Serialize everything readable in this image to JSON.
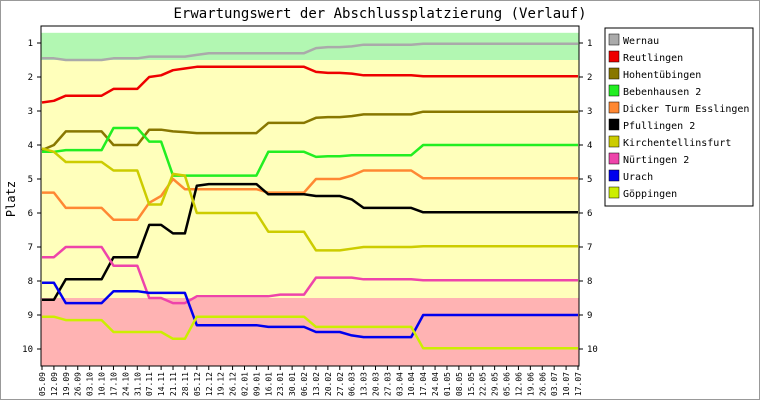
{
  "chart_data": {
    "type": "line",
    "title": "Erwartungswert der Abschlussplatzierung (Verlauf)",
    "ylabel": "Platz",
    "xlabel": "",
    "ylim": [
      1,
      10
    ],
    "y_inverted": true,
    "y_ticks": [
      1,
      2,
      3,
      4,
      5,
      6,
      7,
      8,
      9,
      10
    ],
    "grid": false,
    "legend_position": "right",
    "background_zones": [
      {
        "from": 0.7,
        "to": 1.5,
        "color": "#b2f7b2"
      },
      {
        "from": 1.5,
        "to": 8.5,
        "color": "#ffffbb"
      },
      {
        "from": 8.5,
        "to": 10.8,
        "color": "#ffb3b3"
      }
    ],
    "x": [
      "05.09",
      "12.09",
      "19.09",
      "26.09",
      "03.10",
      "10.10",
      "17.10",
      "24.10",
      "31.10",
      "07.11",
      "14.11",
      "21.11",
      "28.11",
      "05.12",
      "12.12",
      "19.12",
      "26.12",
      "02.01",
      "09.01",
      "16.01",
      "23.01",
      "30.01",
      "06.02",
      "13.02",
      "20.02",
      "27.02",
      "06.03",
      "13.03",
      "20.03",
      "27.03",
      "03.04",
      "10.04",
      "17.04",
      "24.04",
      "01.05",
      "08.05",
      "15.05",
      "22.05",
      "29.05",
      "05.06",
      "12.06",
      "19.06",
      "26.06",
      "03.07",
      "10.07",
      "17.07"
    ],
    "series": [
      {
        "name": "Wernau",
        "color": "#aaaaaa",
        "values": [
          1.45,
          1.45,
          1.5,
          1.5,
          1.5,
          1.5,
          1.45,
          1.45,
          1.45,
          1.4,
          1.4,
          1.4,
          1.4,
          1.35,
          1.3,
          1.3,
          1.3,
          1.3,
          1.3,
          1.3,
          1.3,
          1.3,
          1.3,
          1.15,
          1.12,
          1.12,
          1.1,
          1.05,
          1.05,
          1.05,
          1.05,
          1.05,
          1.02,
          1.02,
          1.02,
          1.02,
          1.02,
          1.02,
          1.02,
          1.02,
          1.02,
          1.02,
          1.02,
          1.02,
          1.02,
          1.02
        ]
      },
      {
        "name": "Reutlingen",
        "color": "#ee0000",
        "values": [
          2.75,
          2.7,
          2.55,
          2.55,
          2.55,
          2.55,
          2.35,
          2.35,
          2.35,
          2.0,
          1.95,
          1.8,
          1.75,
          1.7,
          1.7,
          1.7,
          1.7,
          1.7,
          1.7,
          1.7,
          1.7,
          1.7,
          1.7,
          1.85,
          1.88,
          1.88,
          1.9,
          1.95,
          1.95,
          1.95,
          1.95,
          1.95,
          1.98,
          1.98,
          1.98,
          1.98,
          1.98,
          1.98,
          1.98,
          1.98,
          1.98,
          1.98,
          1.98,
          1.98,
          1.98,
          1.98
        ]
      },
      {
        "name": "Hohentübingen",
        "color": "#887700",
        "values": [
          4.15,
          4.0,
          3.6,
          3.6,
          3.6,
          3.6,
          4.0,
          4.0,
          4.0,
          3.55,
          3.55,
          3.6,
          3.62,
          3.65,
          3.65,
          3.65,
          3.65,
          3.65,
          3.65,
          3.35,
          3.35,
          3.35,
          3.35,
          3.2,
          3.18,
          3.18,
          3.15,
          3.1,
          3.1,
          3.1,
          3.1,
          3.1,
          3.02,
          3.02,
          3.02,
          3.02,
          3.02,
          3.02,
          3.02,
          3.02,
          3.02,
          3.02,
          3.02,
          3.02,
          3.02,
          3.02
        ]
      },
      {
        "name": "Bebenhausen 2",
        "color": "#22ee22",
        "values": [
          4.2,
          4.2,
          4.15,
          4.15,
          4.15,
          4.15,
          3.5,
          3.5,
          3.5,
          3.9,
          3.9,
          4.9,
          4.9,
          4.9,
          4.9,
          4.9,
          4.9,
          4.9,
          4.9,
          4.2,
          4.2,
          4.2,
          4.2,
          4.35,
          4.33,
          4.33,
          4.3,
          4.3,
          4.3,
          4.3,
          4.3,
          4.3,
          4.0,
          4.0,
          4.0,
          4.0,
          4.0,
          4.0,
          4.0,
          4.0,
          4.0,
          4.0,
          4.0,
          4.0,
          4.0,
          4.0
        ]
      },
      {
        "name": "Dicker Turm Esslingen",
        "color": "#ff8833",
        "values": [
          5.4,
          5.4,
          5.85,
          5.85,
          5.85,
          5.85,
          6.2,
          6.2,
          6.2,
          5.7,
          5.5,
          5.0,
          5.3,
          5.3,
          5.3,
          5.3,
          5.3,
          5.3,
          5.3,
          5.4,
          5.4,
          5.4,
          5.4,
          5.0,
          5.0,
          5.0,
          4.9,
          4.75,
          4.75,
          4.75,
          4.75,
          4.75,
          4.98,
          4.98,
          4.98,
          4.98,
          4.98,
          4.98,
          4.98,
          4.98,
          4.98,
          4.98,
          4.98,
          4.98,
          4.98,
          4.98
        ]
      },
      {
        "name": "Pfullingen 2",
        "color": "#000000",
        "values": [
          8.55,
          8.55,
          7.95,
          7.95,
          7.95,
          7.95,
          7.3,
          7.3,
          7.3,
          6.35,
          6.35,
          6.6,
          6.6,
          5.2,
          5.15,
          5.15,
          5.15,
          5.15,
          5.15,
          5.45,
          5.45,
          5.45,
          5.45,
          5.5,
          5.5,
          5.5,
          5.6,
          5.85,
          5.85,
          5.85,
          5.85,
          5.85,
          5.98,
          5.98,
          5.98,
          5.98,
          5.98,
          5.98,
          5.98,
          5.98,
          5.98,
          5.98,
          5.98,
          5.98,
          5.98,
          5.98
        ]
      },
      {
        "name": "Kirchentellinsfurt",
        "color": "#cccc00",
        "values": [
          4.1,
          4.2,
          4.5,
          4.5,
          4.5,
          4.5,
          4.75,
          4.75,
          4.75,
          5.75,
          5.75,
          4.85,
          4.9,
          6.0,
          6.0,
          6.0,
          6.0,
          6.0,
          6.0,
          6.55,
          6.55,
          6.55,
          6.55,
          7.1,
          7.1,
          7.1,
          7.05,
          7.0,
          7.0,
          7.0,
          7.0,
          7.0,
          6.98,
          6.98,
          6.98,
          6.98,
          6.98,
          6.98,
          6.98,
          6.98,
          6.98,
          6.98,
          6.98,
          6.98,
          6.98,
          6.98
        ]
      },
      {
        "name": "Nürtingen 2",
        "color": "#ee44aa",
        "values": [
          7.3,
          7.3,
          7.0,
          7.0,
          7.0,
          7.0,
          7.55,
          7.55,
          7.55,
          8.5,
          8.5,
          8.65,
          8.65,
          8.45,
          8.45,
          8.45,
          8.45,
          8.45,
          8.45,
          8.45,
          8.4,
          8.4,
          8.4,
          7.9,
          7.9,
          7.9,
          7.9,
          7.95,
          7.95,
          7.95,
          7.95,
          7.95,
          7.98,
          7.98,
          7.98,
          7.98,
          7.98,
          7.98,
          7.98,
          7.98,
          7.98,
          7.98,
          7.98,
          7.98,
          7.98,
          7.98
        ]
      },
      {
        "name": "Urach",
        "color": "#0000ee",
        "values": [
          8.05,
          8.05,
          8.65,
          8.65,
          8.65,
          8.65,
          8.3,
          8.3,
          8.3,
          8.35,
          8.35,
          8.35,
          8.35,
          9.3,
          9.3,
          9.3,
          9.3,
          9.3,
          9.3,
          9.35,
          9.35,
          9.35,
          9.35,
          9.5,
          9.5,
          9.5,
          9.6,
          9.65,
          9.65,
          9.65,
          9.65,
          9.65,
          9.0,
          9.0,
          9.0,
          9.0,
          9.0,
          9.0,
          9.0,
          9.0,
          9.0,
          9.0,
          9.0,
          9.0,
          9.0,
          9.0
        ]
      },
      {
        "name": "Göppingen",
        "color": "#ccee00",
        "values": [
          9.05,
          9.05,
          9.15,
          9.15,
          9.15,
          9.15,
          9.5,
          9.5,
          9.5,
          9.5,
          9.5,
          9.7,
          9.7,
          9.05,
          9.05,
          9.05,
          9.05,
          9.05,
          9.05,
          9.05,
          9.05,
          9.05,
          9.05,
          9.35,
          9.35,
          9.35,
          9.35,
          9.35,
          9.35,
          9.35,
          9.35,
          9.35,
          9.98,
          9.98,
          9.98,
          9.98,
          9.98,
          9.98,
          9.98,
          9.98,
          9.98,
          9.98,
          9.98,
          9.98,
          9.98,
          9.98
        ]
      }
    ]
  }
}
